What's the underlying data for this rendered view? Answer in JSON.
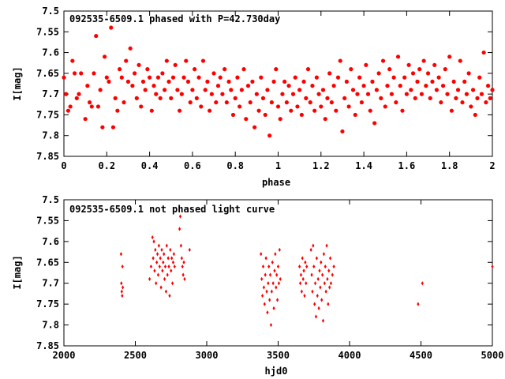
{
  "chart_data": [
    {
      "type": "scatter",
      "title": "092535-6509.1 phased with P=42.730day",
      "xlabel": "phase",
      "ylabel": "I[mag]",
      "xlim": [
        0,
        2
      ],
      "ylim": [
        7.5,
        7.85
      ],
      "y_inverted": true,
      "x_ticks": [
        "0",
        "0.2",
        "0.4",
        "0.6",
        "0.8",
        "1",
        "1.2",
        "1.4",
        "1.6",
        "1.8",
        "2"
      ],
      "y_ticks": [
        "7.5",
        "7.55",
        "7.6",
        "7.65",
        "7.7",
        "7.75",
        "7.8",
        "7.85"
      ],
      "marker_color": "#ff0000",
      "marker": "filled-circle",
      "grid": false,
      "points": [
        [
          0.0,
          7.66
        ],
        [
          0.01,
          7.7
        ],
        [
          0.02,
          7.74
        ],
        [
          0.03,
          7.73
        ],
        [
          0.04,
          7.62
        ],
        [
          0.05,
          7.65
        ],
        [
          0.06,
          7.71
        ],
        [
          0.07,
          7.7
        ],
        [
          0.08,
          7.65
        ],
        [
          0.1,
          7.76
        ],
        [
          0.11,
          7.68
        ],
        [
          0.12,
          7.72
        ],
        [
          0.13,
          7.73
        ],
        [
          0.14,
          7.65
        ],
        [
          0.15,
          7.56
        ],
        [
          0.16,
          7.73
        ],
        [
          0.17,
          7.69
        ],
        [
          0.18,
          7.78
        ],
        [
          0.19,
          7.61
        ],
        [
          0.2,
          7.66
        ],
        [
          0.21,
          7.67
        ],
        [
          0.22,
          7.54
        ],
        [
          0.23,
          7.78
        ],
        [
          0.24,
          7.71
        ],
        [
          0.25,
          7.74
        ],
        [
          0.26,
          7.64
        ],
        [
          0.27,
          7.66
        ],
        [
          0.28,
          7.72
        ],
        [
          0.29,
          7.62
        ],
        [
          0.3,
          7.67
        ],
        [
          0.31,
          7.59
        ],
        [
          0.32,
          7.68
        ],
        [
          0.33,
          7.65
        ],
        [
          0.34,
          7.71
        ],
        [
          0.35,
          7.63
        ],
        [
          0.36,
          7.73
        ],
        [
          0.37,
          7.67
        ],
        [
          0.38,
          7.69
        ],
        [
          0.39,
          7.64
        ],
        [
          0.4,
          7.66
        ],
        [
          0.41,
          7.74
        ],
        [
          0.42,
          7.68
        ],
        [
          0.43,
          7.7
        ],
        [
          0.44,
          7.66
        ],
        [
          0.45,
          7.71
        ],
        [
          0.46,
          7.65
        ],
        [
          0.47,
          7.69
        ],
        [
          0.48,
          7.62
        ],
        [
          0.49,
          7.67
        ],
        [
          0.5,
          7.71
        ],
        [
          0.51,
          7.66
        ],
        [
          0.52,
          7.63
        ],
        [
          0.53,
          7.69
        ],
        [
          0.54,
          7.74
        ],
        [
          0.55,
          7.7
        ],
        [
          0.56,
          7.66
        ],
        [
          0.57,
          7.62
        ],
        [
          0.58,
          7.67
        ],
        [
          0.59,
          7.72
        ],
        [
          0.6,
          7.69
        ],
        [
          0.61,
          7.64
        ],
        [
          0.62,
          7.71
        ],
        [
          0.63,
          7.66
        ],
        [
          0.64,
          7.73
        ],
        [
          0.65,
          7.62
        ],
        [
          0.66,
          7.69
        ],
        [
          0.67,
          7.67
        ],
        [
          0.68,
          7.74
        ],
        [
          0.69,
          7.7
        ],
        [
          0.7,
          7.65
        ],
        [
          0.71,
          7.72
        ],
        [
          0.72,
          7.68
        ],
        [
          0.73,
          7.66
        ],
        [
          0.74,
          7.7
        ],
        [
          0.75,
          7.64
        ],
        [
          0.76,
          7.72
        ],
        [
          0.77,
          7.67
        ],
        [
          0.78,
          7.69
        ],
        [
          0.79,
          7.75
        ],
        [
          0.8,
          7.71
        ],
        [
          0.81,
          7.66
        ],
        [
          0.82,
          7.73
        ],
        [
          0.83,
          7.69
        ],
        [
          0.84,
          7.64
        ],
        [
          0.85,
          7.76
        ],
        [
          0.86,
          7.68
        ],
        [
          0.87,
          7.72
        ],
        [
          0.88,
          7.67
        ],
        [
          0.89,
          7.78
        ],
        [
          0.9,
          7.7
        ],
        [
          0.91,
          7.74
        ],
        [
          0.92,
          7.66
        ],
        [
          0.93,
          7.71
        ],
        [
          0.94,
          7.75
        ],
        [
          0.95,
          7.69
        ],
        [
          0.96,
          7.8
        ],
        [
          0.97,
          7.72
        ],
        [
          0.98,
          7.67
        ],
        [
          0.99,
          7.64
        ],
        [
          1.0,
          7.73
        ],
        [
          1.01,
          7.76
        ],
        [
          1.02,
          7.7
        ],
        [
          1.03,
          7.67
        ],
        [
          1.04,
          7.72
        ],
        [
          1.05,
          7.68
        ],
        [
          1.06,
          7.74
        ],
        [
          1.07,
          7.7
        ],
        [
          1.08,
          7.66
        ],
        [
          1.09,
          7.73
        ],
        [
          1.1,
          7.69
        ],
        [
          1.11,
          7.75
        ],
        [
          1.12,
          7.67
        ],
        [
          1.13,
          7.71
        ],
        [
          1.14,
          7.64
        ],
        [
          1.15,
          7.72
        ],
        [
          1.16,
          7.68
        ],
        [
          1.17,
          7.74
        ],
        [
          1.18,
          7.66
        ],
        [
          1.19,
          7.7
        ],
        [
          1.2,
          7.73
        ],
        [
          1.21,
          7.69
        ],
        [
          1.22,
          7.76
        ],
        [
          1.23,
          7.71
        ],
        [
          1.24,
          7.65
        ],
        [
          1.25,
          7.72
        ],
        [
          1.26,
          7.68
        ],
        [
          1.27,
          7.74
        ],
        [
          1.28,
          7.66
        ],
        [
          1.29,
          7.62
        ],
        [
          1.3,
          7.79
        ],
        [
          1.31,
          7.71
        ],
        [
          1.32,
          7.67
        ],
        [
          1.33,
          7.73
        ],
        [
          1.34,
          7.64
        ],
        [
          1.35,
          7.69
        ],
        [
          1.36,
          7.75
        ],
        [
          1.37,
          7.7
        ],
        [
          1.38,
          7.66
        ],
        [
          1.39,
          7.72
        ],
        [
          1.4,
          7.68
        ],
        [
          1.41,
          7.63
        ],
        [
          1.42,
          7.7
        ],
        [
          1.43,
          7.74
        ],
        [
          1.44,
          7.67
        ],
        [
          1.45,
          7.77
        ],
        [
          1.46,
          7.69
        ],
        [
          1.47,
          7.65
        ],
        [
          1.48,
          7.71
        ],
        [
          1.49,
          7.62
        ],
        [
          1.5,
          7.73
        ],
        [
          1.51,
          7.68
        ],
        [
          1.52,
          7.64
        ],
        [
          1.53,
          7.7
        ],
        [
          1.54,
          7.66
        ],
        [
          1.55,
          7.72
        ],
        [
          1.56,
          7.61
        ],
        [
          1.57,
          7.68
        ],
        [
          1.58,
          7.74
        ],
        [
          1.59,
          7.66
        ],
        [
          1.6,
          7.7
        ],
        [
          1.61,
          7.63
        ],
        [
          1.62,
          7.69
        ],
        [
          1.63,
          7.65
        ],
        [
          1.64,
          7.71
        ],
        [
          1.65,
          7.67
        ],
        [
          1.66,
          7.64
        ],
        [
          1.67,
          7.7
        ],
        [
          1.68,
          7.62
        ],
        [
          1.69,
          7.68
        ],
        [
          1.7,
          7.65
        ],
        [
          1.71,
          7.71
        ],
        [
          1.72,
          7.67
        ],
        [
          1.73,
          7.63
        ],
        [
          1.74,
          7.69
        ],
        [
          1.75,
          7.66
        ],
        [
          1.76,
          7.72
        ],
        [
          1.77,
          7.68
        ],
        [
          1.78,
          7.64
        ],
        [
          1.79,
          7.7
        ],
        [
          1.8,
          7.61
        ],
        [
          1.81,
          7.74
        ],
        [
          1.82,
          7.67
        ],
        [
          1.83,
          7.71
        ],
        [
          1.84,
          7.69
        ],
        [
          1.85,
          7.62
        ],
        [
          1.86,
          7.72
        ],
        [
          1.87,
          7.67
        ],
        [
          1.88,
          7.7
        ],
        [
          1.89,
          7.65
        ],
        [
          1.9,
          7.73
        ],
        [
          1.91,
          7.69
        ],
        [
          1.92,
          7.75
        ],
        [
          1.93,
          7.71
        ],
        [
          1.94,
          7.66
        ],
        [
          1.95,
          7.7
        ],
        [
          1.96,
          7.6
        ],
        [
          1.97,
          7.72
        ],
        [
          1.98,
          7.68
        ],
        [
          1.99,
          7.71
        ],
        [
          2.0,
          7.69
        ]
      ]
    },
    {
      "type": "scatter",
      "title": "092535-6509.1 not phased light curve",
      "xlabel": "hjd0",
      "ylabel": "I[mag]",
      "xlim": [
        2000,
        5000
      ],
      "ylim": [
        7.5,
        7.85
      ],
      "y_inverted": true,
      "x_ticks": [
        "2000",
        "2500",
        "3000",
        "3500",
        "4000",
        "4500",
        "5000"
      ],
      "y_ticks": [
        "7.5",
        "7.55",
        "7.6",
        "7.65",
        "7.7",
        "7.75",
        "7.8",
        "7.85"
      ],
      "marker_color": "#ff0000",
      "marker": "filled-diamond",
      "grid": false,
      "points": [
        [
          2400,
          7.63
        ],
        [
          2402,
          7.7
        ],
        [
          2405,
          7.72
        ],
        [
          2408,
          7.73
        ],
        [
          2410,
          7.66
        ],
        [
          2412,
          7.71
        ],
        [
          2600,
          7.69
        ],
        [
          2610,
          7.66
        ],
        [
          2620,
          7.59
        ],
        [
          2625,
          7.64
        ],
        [
          2630,
          7.6
        ],
        [
          2635,
          7.67
        ],
        [
          2640,
          7.62
        ],
        [
          2645,
          7.7
        ],
        [
          2650,
          7.65
        ],
        [
          2655,
          7.63
        ],
        [
          2660,
          7.68
        ],
        [
          2665,
          7.61
        ],
        [
          2670,
          7.66
        ],
        [
          2675,
          7.64
        ],
        [
          2680,
          7.71
        ],
        [
          2685,
          7.62
        ],
        [
          2690,
          7.67
        ],
        [
          2695,
          7.65
        ],
        [
          2700,
          7.63
        ],
        [
          2705,
          7.69
        ],
        [
          2710,
          7.66
        ],
        [
          2715,
          7.72
        ],
        [
          2720,
          7.61
        ],
        [
          2725,
          7.68
        ],
        [
          2730,
          7.64
        ],
        [
          2735,
          7.66
        ],
        [
          2740,
          7.73
        ],
        [
          2745,
          7.62
        ],
        [
          2750,
          7.67
        ],
        [
          2755,
          7.64
        ],
        [
          2760,
          7.7
        ],
        [
          2765,
          7.65
        ],
        [
          2770,
          7.63
        ],
        [
          2775,
          7.66
        ],
        [
          2810,
          7.57
        ],
        [
          2815,
          7.54
        ],
        [
          2820,
          7.61
        ],
        [
          2825,
          7.64
        ],
        [
          2830,
          7.66
        ],
        [
          2835,
          7.68
        ],
        [
          2840,
          7.65
        ],
        [
          2845,
          7.69
        ],
        [
          2880,
          7.62
        ],
        [
          3380,
          7.63
        ],
        [
          3385,
          7.69
        ],
        [
          3390,
          7.73
        ],
        [
          3395,
          7.66
        ],
        [
          3400,
          7.71
        ],
        [
          3405,
          7.75
        ],
        [
          3410,
          7.68
        ],
        [
          3415,
          7.64
        ],
        [
          3420,
          7.72
        ],
        [
          3425,
          7.77
        ],
        [
          3430,
          7.7
        ],
        [
          3435,
          7.66
        ],
        [
          3440,
          7.74
        ],
        [
          3445,
          7.68
        ],
        [
          3450,
          7.8
        ],
        [
          3455,
          7.72
        ],
        [
          3460,
          7.65
        ],
        [
          3465,
          7.7
        ],
        [
          3470,
          7.76
        ],
        [
          3475,
          7.67
        ],
        [
          3480,
          7.63
        ],
        [
          3485,
          7.71
        ],
        [
          3490,
          7.68
        ],
        [
          3495,
          7.74
        ],
        [
          3500,
          7.66
        ],
        [
          3505,
          7.7
        ],
        [
          3510,
          7.62
        ],
        [
          3515,
          7.69
        ],
        [
          3650,
          7.66
        ],
        [
          3655,
          7.7
        ],
        [
          3660,
          7.68
        ],
        [
          3665,
          7.72
        ],
        [
          3670,
          7.64
        ],
        [
          3675,
          7.69
        ],
        [
          3680,
          7.67
        ],
        [
          3685,
          7.73
        ],
        [
          3690,
          7.65
        ],
        [
          3695,
          7.7
        ],
        [
          3700,
          7.66
        ],
        [
          3730,
          7.62
        ],
        [
          3735,
          7.68
        ],
        [
          3740,
          7.72
        ],
        [
          3745,
          7.61
        ],
        [
          3750,
          7.66
        ],
        [
          3755,
          7.75
        ],
        [
          3760,
          7.7
        ],
        [
          3765,
          7.78
        ],
        [
          3770,
          7.64
        ],
        [
          3775,
          7.73
        ],
        [
          3780,
          7.69
        ],
        [
          3785,
          7.76
        ],
        [
          3790,
          7.67
        ],
        [
          3795,
          7.71
        ],
        [
          3800,
          7.65
        ],
        [
          3805,
          7.74
        ],
        [
          3810,
          7.68
        ],
        [
          3815,
          7.79
        ],
        [
          3820,
          7.63
        ],
        [
          3825,
          7.7
        ],
        [
          3830,
          7.66
        ],
        [
          3835,
          7.72
        ],
        [
          3840,
          7.61
        ],
        [
          3845,
          7.69
        ],
        [
          3850,
          7.75
        ],
        [
          3855,
          7.67
        ],
        [
          3860,
          7.71
        ],
        [
          3865,
          7.64
        ],
        [
          3870,
          7.7
        ],
        [
          3880,
          7.68
        ],
        [
          3890,
          7.66
        ],
        [
          4480,
          7.75
        ],
        [
          4510,
          7.7
        ],
        [
          5000,
          7.66
        ]
      ]
    }
  ]
}
